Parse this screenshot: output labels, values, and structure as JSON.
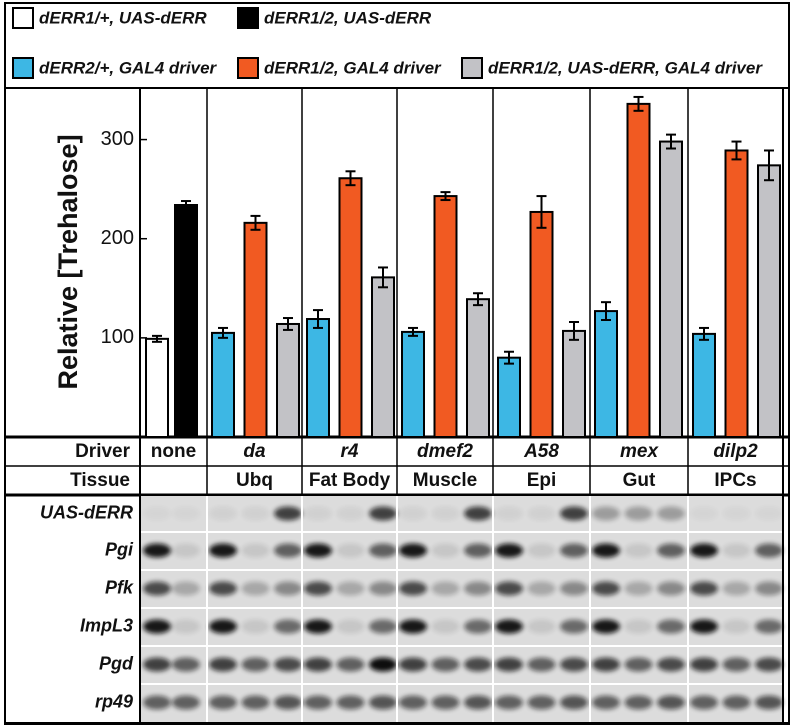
{
  "chart_data": {
    "type": "bar",
    "y_label": "Relative [Trehalose]",
    "categories": [
      "none",
      "da",
      "r4",
      "dmef2",
      "A58",
      "mex",
      "dilp2"
    ],
    "series": [
      {
        "name": "dERR1/+, UAS-dERR",
        "color": "#ffffff",
        "values": [
          99,
          null,
          null,
          null,
          null,
          null,
          null
        ],
        "errors": [
          3,
          null,
          null,
          null,
          null,
          null,
          null
        ]
      },
      {
        "name": "dERR1/2, UAS-dERR",
        "color": "#000000",
        "values": [
          234,
          null,
          null,
          null,
          null,
          null,
          null
        ],
        "errors": [
          4,
          null,
          null,
          null,
          null,
          null,
          null
        ]
      },
      {
        "name": "dERR2/+, GAL4 driver",
        "color": "#3db7e4",
        "values": [
          null,
          105,
          119,
          106,
          80,
          127,
          104
        ],
        "errors": [
          null,
          5,
          9,
          4,
          6,
          9,
          6
        ]
      },
      {
        "name": "dERR1/2, GAL4 driver",
        "color": "#f15a22",
        "values": [
          null,
          216,
          261,
          243,
          227,
          336,
          289
        ],
        "errors": [
          null,
          7,
          7,
          4,
          16,
          7,
          9
        ]
      },
      {
        "name": "dERR1/2, UAS-dERR, GAL4 driver",
        "color": "#c2c2c6",
        "values": [
          null,
          114,
          161,
          139,
          107,
          298,
          274
        ],
        "errors": [
          null,
          6,
          10,
          6,
          9,
          7,
          15
        ]
      }
    ],
    "ylim": [
      0,
      350
    ],
    "yticks": [
      100,
      200,
      300
    ],
    "grid": false
  },
  "table": {
    "rows": [
      [
        "Driver",
        "none",
        "da",
        "r4",
        "dmef2",
        "A58",
        "mex",
        "dilp2"
      ],
      [
        "Tissue",
        null,
        "Ubq",
        "Fat Body",
        "Muscle",
        "Epi",
        "Gut",
        "IPCs"
      ]
    ]
  },
  "blot": {
    "labels": [
      "UAS-dERR",
      "Pgi",
      "Pfk",
      "ImpL3",
      "Pgd",
      "rp49"
    ]
  }
}
